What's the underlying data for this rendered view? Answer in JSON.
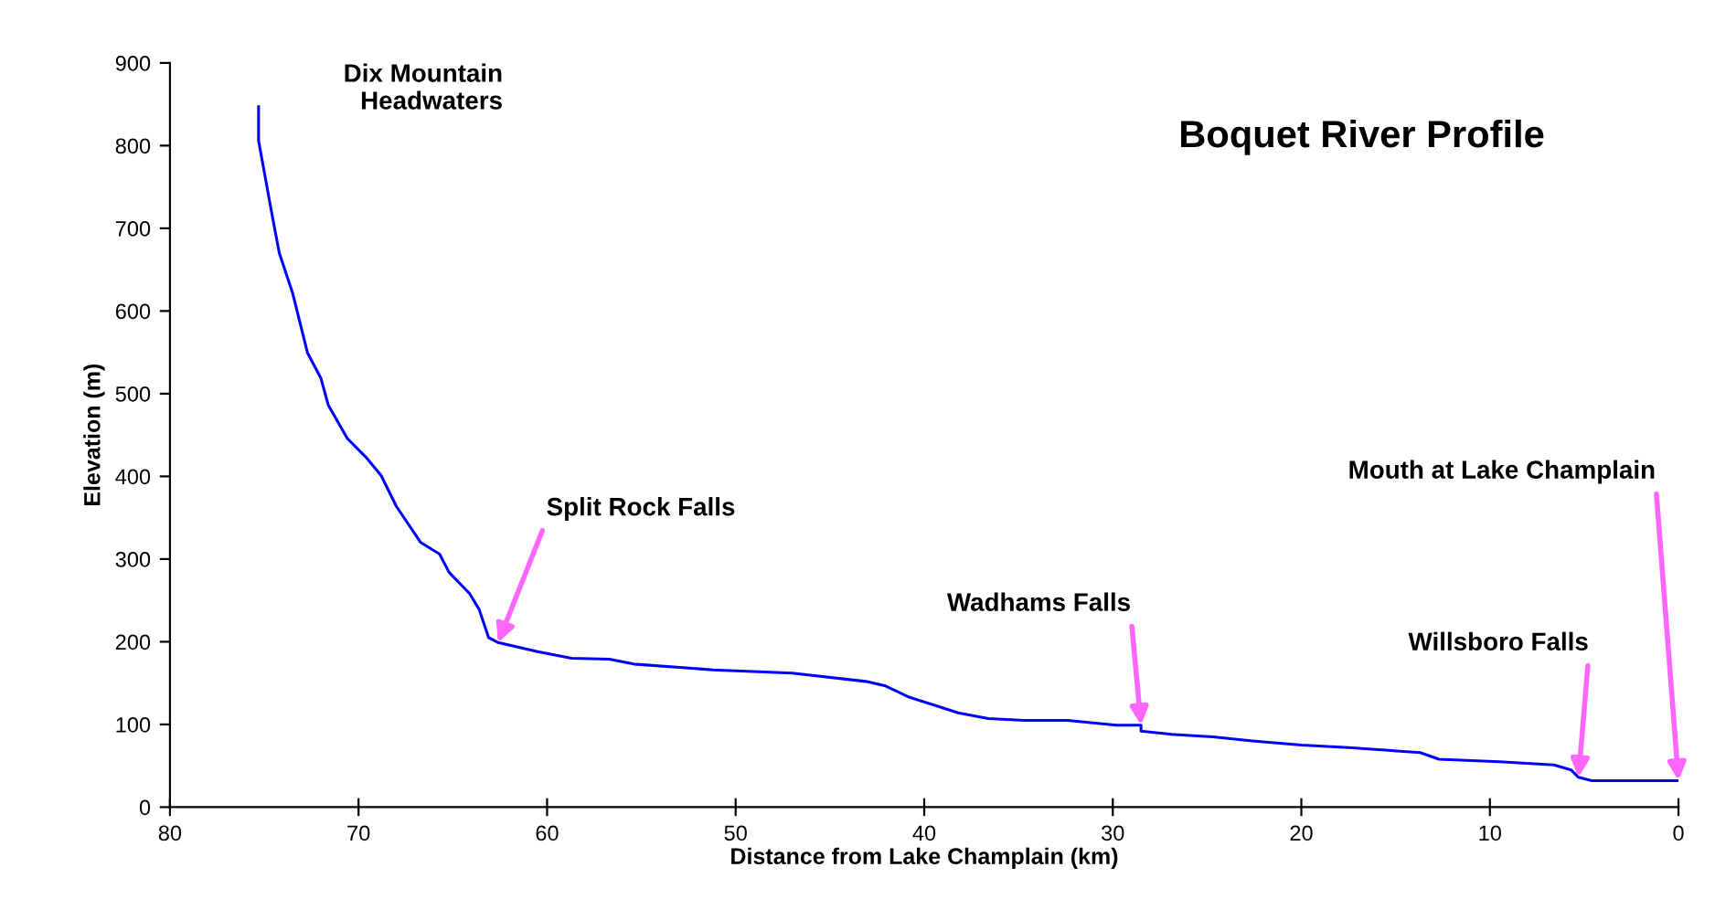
{
  "chart_data": {
    "type": "line",
    "title": "Boquet River Profile",
    "xlabel": "Distance from Lake Champlain (km)",
    "ylabel": "Elevation (m)",
    "xlim": [
      80,
      0
    ],
    "xticks": [
      80,
      70,
      60,
      50,
      40,
      30,
      20,
      10,
      0
    ],
    "ylim": [
      0,
      900
    ],
    "yticks": [
      0,
      100,
      200,
      300,
      400,
      500,
      600,
      700,
      800,
      900
    ],
    "grid": false,
    "legend": false,
    "marker": "none",
    "line_style": "solid",
    "series": [
      {
        "color": "#0000ff",
        "x": [
          75.3,
          75.3,
          74.6,
          74.2,
          73.5,
          72.7,
          72.0,
          71.6,
          70.6,
          69.6,
          68.8,
          68.0,
          66.7,
          65.7,
          65.2,
          64.1,
          63.6,
          63.1,
          62.6,
          60.5,
          58.7,
          56.7,
          55.4,
          51.2,
          47.0,
          43.1,
          42.1,
          40.8,
          38.2,
          36.6,
          34.7,
          32.4,
          29.8,
          28.5,
          28.5,
          26.9,
          24.7,
          22.6,
          20.0,
          17.5,
          13.7,
          12.7,
          9.5,
          6.6,
          5.7,
          5.3,
          4.6,
          1.5,
          0
        ],
        "values": [
          847,
          806,
          718,
          670,
          622,
          549,
          519,
          486,
          446,
          423,
          401,
          364,
          320,
          306,
          284,
          258,
          239,
          205,
          199,
          188,
          180,
          179,
          173,
          166,
          162,
          152,
          147,
          133,
          114,
          107,
          105,
          105,
          99,
          99,
          92,
          88,
          85,
          80,
          75,
          72,
          66,
          58,
          55,
          51,
          45,
          36,
          32,
          32,
          32
        ]
      }
    ],
    "annotations": [
      "Dix Mountain\nHeadwaters",
      {
        "text": "Split Rock Falls",
        "x": 62.6,
        "y": 199
      },
      {
        "text": "Wadhams Falls",
        "x": 28.5,
        "y": 99
      },
      {
        "text": "Willsboro Falls",
        "x": 5.3,
        "y": 36
      },
      {
        "text": "Mouth at Lake Champlain",
        "x": 0,
        "y": 32
      }
    ]
  }
}
